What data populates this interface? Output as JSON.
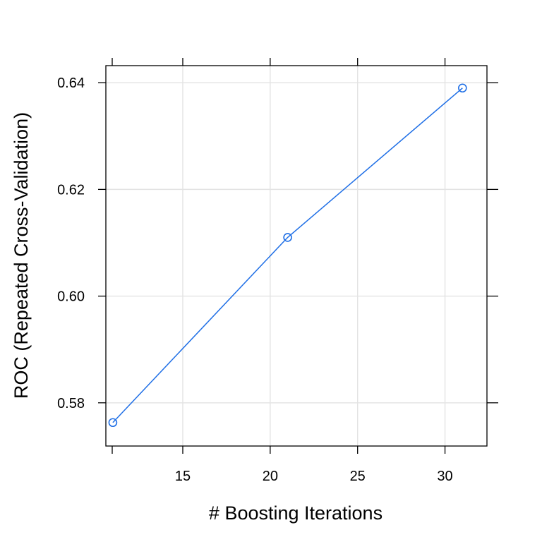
{
  "chart_data": {
    "type": "line",
    "title": "",
    "xlabel": "# Boosting Iterations",
    "ylabel": "ROC (Repeated Cross-Validation)",
    "x_ticks": [
      15,
      20,
      25,
      30
    ],
    "y_ticks": [
      0.58,
      0.6,
      0.62,
      0.64
    ],
    "y_tick_labels": [
      "0.58",
      "0.60",
      "0.62",
      "0.64"
    ],
    "xlim": [
      10.6,
      32.4
    ],
    "ylim": [
      0.5719,
      0.6432
    ],
    "grid": true,
    "series": [
      {
        "color": "#1f6fe6",
        "marker": "open-circle",
        "x": [
          11,
          21,
          31
        ],
        "y": [
          0.5763,
          0.611,
          0.639
        ]
      }
    ]
  }
}
